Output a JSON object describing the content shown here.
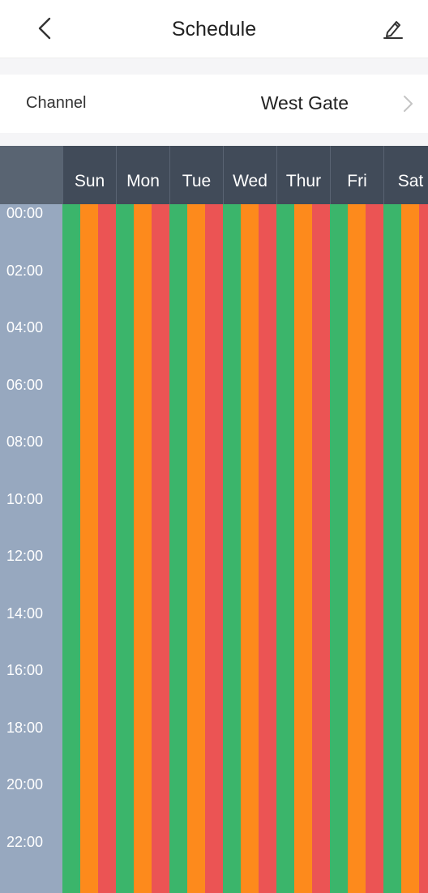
{
  "header": {
    "title": "Schedule",
    "back_icon": "chevron-left-icon",
    "edit_icon": "pencil-icon"
  },
  "channel": {
    "label": "Channel",
    "value": "West Gate",
    "chevron_icon": "chevron-right-icon"
  },
  "schedule": {
    "days": [
      "Sun",
      "Mon",
      "Tue",
      "Wed",
      "Thur",
      "Fri",
      "Sat"
    ],
    "times": [
      "00:00",
      "02:00",
      "04:00",
      "06:00",
      "08:00",
      "10:00",
      "12:00",
      "14:00",
      "16:00",
      "18:00",
      "20:00",
      "22:00"
    ],
    "record_types": [
      {
        "color": "#3bb56b"
      },
      {
        "color": "#fd8a1c"
      },
      {
        "color": "#eb5454"
      }
    ]
  },
  "colors": {
    "header_bg": "#414b59",
    "time_col_bg": "#97a8bf",
    "page_bg": "#f5f5f7"
  }
}
